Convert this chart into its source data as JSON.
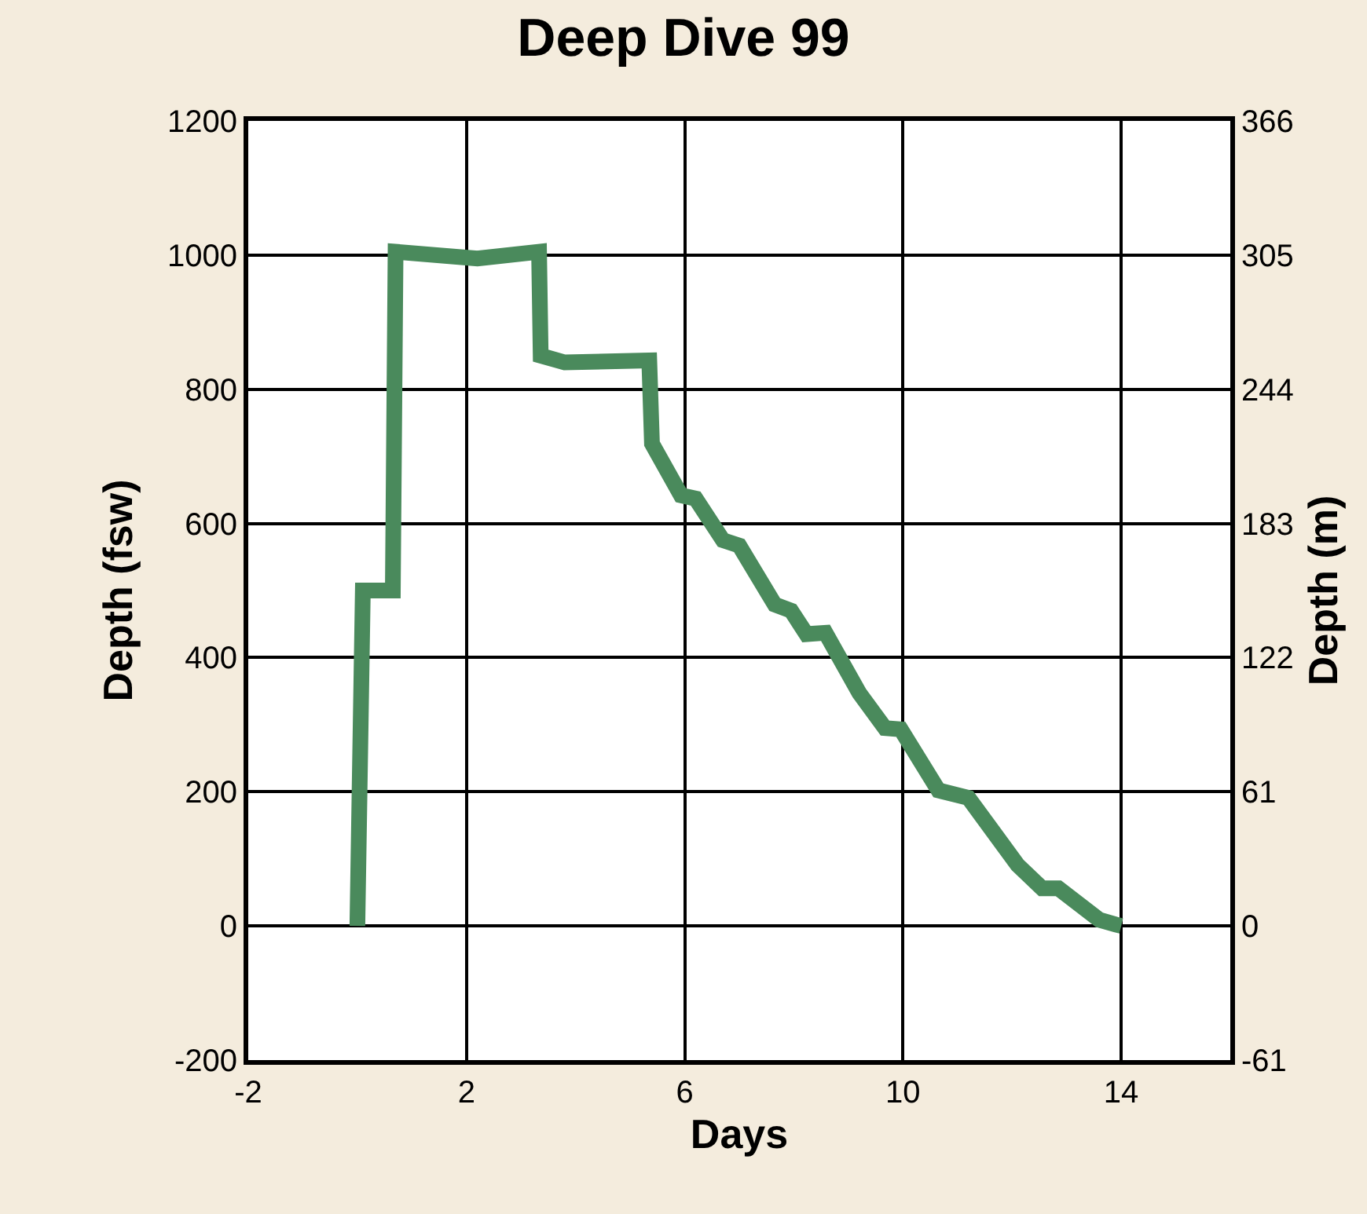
{
  "chart_data": {
    "type": "line",
    "title": "Deep Dive 99",
    "xlabel": "Days",
    "ylabel": "Depth (fsw)",
    "y2label": "Depth (m)",
    "x": [
      0,
      0.1,
      0.65,
      0.7,
      2.2,
      3.33,
      3.36,
      3.8,
      5.35,
      5.4,
      5.93,
      6.2,
      6.7,
      7.0,
      7.65,
      7.95,
      8.23,
      8.58,
      9.2,
      9.67,
      9.96,
      10.65,
      11.2,
      12.1,
      12.55,
      12.85,
      13.6,
      13.9,
      14
    ],
    "series": [
      {
        "color": "#4a8a5c",
        "values": [
          0,
          500,
          500,
          1005,
          995,
          1005,
          850,
          840,
          843,
          719,
          642,
          637,
          575,
          567,
          479,
          470,
          435,
          437,
          347,
          295,
          293,
          202,
          191,
          91,
          56,
          56,
          9,
          2,
          0
        ]
      }
    ],
    "xlim": [
      -2,
      16
    ],
    "xticks": [
      -2,
      2,
      6,
      10,
      14
    ],
    "ylim": [
      -200,
      1200
    ],
    "yticks": [
      -200,
      0,
      200,
      400,
      600,
      800,
      1000,
      1200
    ],
    "y2lim": [
      -61,
      366
    ],
    "y2ticks": [
      -61,
      0,
      61,
      122,
      183,
      244,
      305,
      366
    ],
    "grid": true,
    "marker": "none",
    "line_style": "solid"
  }
}
